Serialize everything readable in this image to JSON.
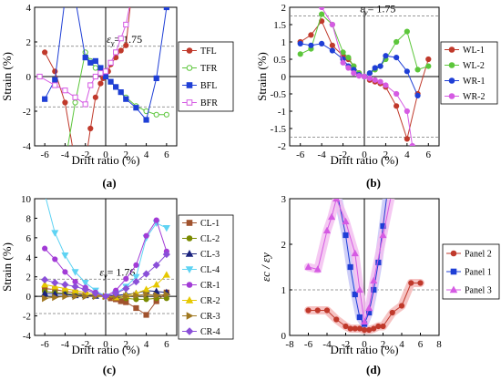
{
  "colors": {
    "red": "#c0392b",
    "green": "#5cc63b",
    "blue": "#1f3fd6",
    "magenta": "#d55be3",
    "brown": "#a0522d",
    "olive": "#7a8a00",
    "navy": "#1a237e",
    "cyan": "#5fd3f3",
    "purple": "#a23bd6",
    "gold": "#e6c800",
    "goldbrown": "#a07820",
    "violet": "#8a4fd8",
    "hl_red": "#f4b8b8",
    "hl_blue": "#c7c7f7",
    "hl_purple": "#f3c0f0"
  },
  "chart_data": [
    {
      "id": "a",
      "type": "line",
      "sublabel": "(a)",
      "xlabel": "Drift ratio (%)",
      "ylabel": "Strain (%)",
      "xlim": [
        -7,
        7
      ],
      "ylim": [
        -4,
        4
      ],
      "xticks": [
        -6,
        -4,
        -2,
        0,
        2,
        4,
        6
      ],
      "yticks": [
        -4,
        -2,
        0,
        2,
        4
      ],
      "yield": 1.75,
      "yield_label": "1.75",
      "legend_position": "right",
      "series": [
        {
          "name": "TFL",
          "color": "red",
          "marker": "circle",
          "filled": true,
          "x": [
            -6,
            -5,
            -4,
            -3,
            -2,
            -1.5,
            -1,
            -0.5,
            -0.25,
            0,
            0.25,
            0.5,
            1,
            1.5,
            2,
            2.5
          ],
          "y": [
            1.4,
            0.3,
            -1.5,
            -5,
            -5,
            -3,
            -1.2,
            -0.4,
            -0.1,
            0,
            0.3,
            0.7,
            1.1,
            1.5,
            1.8,
            4.5
          ]
        },
        {
          "name": "TFR",
          "color": "green",
          "marker": "circle",
          "filled": false,
          "x": [
            -5,
            -4,
            -3,
            -2,
            -1.5,
            -1,
            -0.5,
            0,
            0.5,
            1,
            1.5,
            2,
            3,
            4,
            5,
            6
          ],
          "y": [
            -5,
            -5,
            -1.5,
            1.4,
            0.9,
            0.5,
            0.2,
            0,
            -0.3,
            -0.6,
            -0.9,
            -1.2,
            -1.7,
            -2.0,
            -2.2,
            -2.2
          ]
        },
        {
          "name": "BFL",
          "color": "blue",
          "marker": "square",
          "filled": true,
          "x": [
            -6,
            -5,
            -4,
            -3,
            -2,
            -1.5,
            -1,
            -0.5,
            0,
            0.5,
            1,
            1.5,
            2,
            3,
            4,
            5,
            6
          ],
          "y": [
            -1.3,
            -0.2,
            4.5,
            4.5,
            1.1,
            0.8,
            0.9,
            0.5,
            0,
            -0.3,
            -0.6,
            -0.9,
            -1.3,
            -1.8,
            -2.5,
            -0.1,
            4.0
          ]
        },
        {
          "name": "BFR",
          "color": "magenta",
          "marker": "square",
          "filled": false,
          "x": [
            -6.5,
            -5,
            -4,
            -3,
            -2,
            -1.5,
            -1,
            -0.5,
            0,
            0.5,
            1,
            1.5,
            2,
            2.5
          ],
          "y": [
            0,
            -0.5,
            -0.8,
            -1.2,
            -1.6,
            -0.5,
            0,
            0.2,
            0.3,
            0.8,
            1.4,
            2.2,
            3.0,
            4.5
          ]
        }
      ]
    },
    {
      "id": "b",
      "type": "line",
      "sublabel": "(b)",
      "xlabel": "Drift ratio (%)",
      "ylabel": "Strain (%)",
      "xlim": [
        -7,
        7
      ],
      "ylim": [
        -2,
        2
      ],
      "xticks": [
        -6,
        -4,
        -2,
        0,
        2,
        4,
        6
      ],
      "yticks": [
        -2,
        -1.5,
        -1,
        -0.5,
        0,
        0.5,
        1,
        1.5,
        2
      ],
      "yield": 1.75,
      "yield_label": "1.75",
      "legend_position": "right",
      "series": [
        {
          "name": "WL-1",
          "color": "red",
          "marker": "circle",
          "filled": true,
          "x": [
            -6,
            -5,
            -4,
            -3,
            -2,
            -1.5,
            -1,
            -0.5,
            0,
            0.5,
            1,
            1.5,
            2,
            3,
            4,
            5,
            6
          ],
          "y": [
            1.0,
            1.2,
            1.6,
            0.9,
            0.6,
            0.5,
            0.3,
            0.1,
            0,
            -0.1,
            -0.15,
            -0.2,
            -0.3,
            -0.85,
            -1.8,
            -0.5,
            0.5
          ]
        },
        {
          "name": "WL-2",
          "color": "green",
          "marker": "circle",
          "filled": true,
          "x": [
            -6,
            -5,
            -4,
            -3,
            -2,
            -1.5,
            -1,
            -0.5,
            0,
            0.5,
            1,
            1.5,
            2,
            3,
            4,
            5,
            6
          ],
          "y": [
            0.65,
            0.8,
            1.8,
            1.5,
            0.7,
            0.55,
            0.3,
            0.1,
            0,
            0.1,
            0.2,
            0.3,
            0.5,
            1.0,
            1.3,
            0.2,
            0.3
          ]
        },
        {
          "name": "WR-1",
          "color": "blue",
          "marker": "circle",
          "filled": true,
          "x": [
            -6,
            -5,
            -4,
            -3,
            -2,
            -1.5,
            -1,
            -0.5,
            0,
            0.5,
            1,
            1.5,
            2,
            3,
            4,
            5
          ],
          "y": [
            0.95,
            0.9,
            0.95,
            0.75,
            0.5,
            0.3,
            0.2,
            0.05,
            0,
            0.1,
            0.25,
            0.3,
            0.6,
            0.55,
            0.15,
            -0.55
          ]
        },
        {
          "name": "WR-2",
          "color": "magenta",
          "marker": "circle",
          "filled": true,
          "x": [
            -4,
            -3,
            -2,
            -1.5,
            -1,
            -0.5,
            0,
            0.5,
            1,
            1.5,
            2,
            3,
            4,
            4.5
          ],
          "y": [
            2.0,
            1.5,
            0.4,
            0.25,
            0.1,
            0.02,
            0,
            -0.05,
            -0.1,
            -0.15,
            -0.25,
            -0.5,
            -1.0,
            -2.0
          ]
        }
      ]
    },
    {
      "id": "c",
      "type": "line",
      "sublabel": "(c)",
      "xlabel": "Drift ratio (%)",
      "ylabel": "Strain (%)",
      "xlim": [
        -7,
        7
      ],
      "ylim": [
        -4,
        10
      ],
      "xticks": [
        -6,
        -4,
        -2,
        0,
        2,
        4,
        6
      ],
      "yticks": [
        -4,
        -2,
        0,
        2,
        4,
        6,
        8,
        10
      ],
      "yield": 1.76,
      "yield_label": "1.76",
      "legend_position": "right",
      "series": [
        {
          "name": "CL-1",
          "color": "brown",
          "marker": "square",
          "filled": true,
          "x": [
            -6,
            -5,
            -4,
            -3,
            -2,
            -1,
            0,
            0.5,
            1,
            1.5,
            2,
            3,
            4,
            5,
            6
          ],
          "y": [
            0.8,
            0.7,
            0.5,
            0.4,
            0.2,
            0.1,
            0,
            -0.2,
            -0.3,
            -0.5,
            -0.6,
            -1.2,
            -1.9,
            -0.5,
            0.4
          ]
        },
        {
          "name": "CL-2",
          "color": "olive",
          "marker": "circle",
          "filled": true,
          "x": [
            -6,
            -5,
            -4,
            -3,
            -2,
            -1,
            0,
            1,
            2,
            3,
            4,
            5,
            6
          ],
          "y": [
            0.5,
            0.4,
            0.3,
            0.2,
            0.15,
            0.1,
            0,
            -0.1,
            -0.2,
            -0.3,
            -0.3,
            -0.2,
            -0.2
          ]
        },
        {
          "name": "CL-3",
          "color": "navy",
          "marker": "triangle",
          "filled": true,
          "x": [
            -6,
            -5,
            -4,
            -3,
            -2,
            -1,
            0,
            1,
            2,
            3,
            4,
            5,
            6
          ],
          "y": [
            0.3,
            0.25,
            0.2,
            0.1,
            0.1,
            0.05,
            0,
            0.1,
            0.2,
            0.3,
            0.6,
            0.5,
            0.4
          ]
        },
        {
          "name": "CL-4",
          "color": "cyan",
          "marker": "triangle-down",
          "filled": true,
          "x": [
            -6,
            -5,
            -4,
            -3,
            -2,
            -1,
            0,
            1,
            2,
            3,
            4,
            5,
            6
          ],
          "y": [
            10.5,
            6.5,
            4.2,
            2.5,
            1.4,
            0.6,
            0,
            0.3,
            1.0,
            2.0,
            6.0,
            7.5,
            7.0
          ]
        },
        {
          "name": "CR-1",
          "color": "purple",
          "marker": "circle",
          "filled": true,
          "x": [
            -6,
            -5,
            -4,
            -3,
            -2,
            -1,
            0,
            1,
            2,
            3,
            4,
            5,
            6
          ],
          "y": [
            4.9,
            3.8,
            2.5,
            1.5,
            0.9,
            0.4,
            0,
            0.6,
            1.8,
            3.2,
            6.2,
            7.8,
            4.6
          ]
        },
        {
          "name": "CR-2",
          "color": "gold",
          "marker": "triangle",
          "filled": true,
          "x": [
            -6,
            -5,
            -4,
            -3,
            -2,
            -1,
            0,
            1,
            2,
            3,
            4,
            5,
            6
          ],
          "y": [
            1.2,
            1.0,
            0.8,
            0.6,
            0.4,
            0.2,
            0,
            -0.1,
            0.1,
            0.3,
            0.7,
            1.2,
            2.2
          ]
        },
        {
          "name": "CR-3",
          "color": "goldbrown",
          "marker": "triangle-right",
          "filled": true,
          "x": [
            -6,
            -5,
            -4,
            -3,
            -2,
            -1,
            0,
            1,
            2,
            3,
            4,
            5,
            6
          ],
          "y": [
            -0.2,
            -0.1,
            0,
            0,
            0,
            0,
            0,
            0,
            0,
            0.1,
            0.2,
            0.1,
            0.2
          ]
        },
        {
          "name": "CR-4",
          "color": "violet",
          "marker": "diamond",
          "filled": true,
          "x": [
            -6,
            -5,
            -4,
            -3,
            -2,
            -1,
            0,
            1,
            2,
            3,
            4,
            5,
            6
          ],
          "y": [
            1.7,
            1.4,
            1.2,
            1.0,
            0.7,
            0.3,
            0,
            0.3,
            0.8,
            1.5,
            2.3,
            3.2,
            4.3
          ]
        }
      ]
    },
    {
      "id": "d",
      "type": "line",
      "sublabel": "(d)",
      "xlabel": "Drift ratio (%)",
      "ylabel": "εc / εy",
      "xlim": [
        -8,
        8
      ],
      "ylim": [
        0,
        3
      ],
      "xticks": [
        -8,
        -6,
        -4,
        -2,
        0,
        2,
        4,
        6,
        8
      ],
      "yticks": [
        0,
        1,
        2,
        3
      ],
      "reference_line": 1,
      "legend_position": "right",
      "series": [
        {
          "name": "Panel 2",
          "color": "red",
          "marker": "circle",
          "filled": true,
          "highlight": "hl_red",
          "x": [
            -6,
            -5,
            -4,
            -3,
            -2,
            -1.5,
            -1,
            -0.5,
            0,
            0.5,
            1,
            1.5,
            2,
            3,
            4,
            5,
            6
          ],
          "y": [
            0.55,
            0.55,
            0.55,
            0.35,
            0.2,
            0.15,
            0.15,
            0.15,
            0.12,
            0.12,
            0.15,
            0.2,
            0.2,
            0.5,
            0.65,
            1.15,
            1.15
          ]
        },
        {
          "name": "Panel 1",
          "color": "blue",
          "marker": "square",
          "filled": true,
          "highlight": "hl_blue",
          "x": [
            -3,
            -2,
            -1.5,
            -1,
            -0.5,
            0,
            0.5,
            1,
            1.5,
            2,
            2.5
          ],
          "y": [
            3.2,
            2.2,
            1.5,
            0.9,
            0.4,
            0.25,
            0.5,
            1.0,
            1.6,
            2.4,
            3.2
          ]
        },
        {
          "name": "Panel 3",
          "color": "magenta",
          "marker": "triangle",
          "filled": true,
          "highlight": "hl_purple",
          "x": [
            -6,
            -5,
            -4,
            -3.5,
            -3,
            -2,
            -1,
            -0.5,
            0,
            0.5,
            1,
            2,
            3
          ],
          "y": [
            1.5,
            1.45,
            2.3,
            2.6,
            3.0,
            2.5,
            1.8,
            1.0,
            0.3,
            0.6,
            1.2,
            2.2,
            3.2
          ]
        }
      ]
    }
  ]
}
